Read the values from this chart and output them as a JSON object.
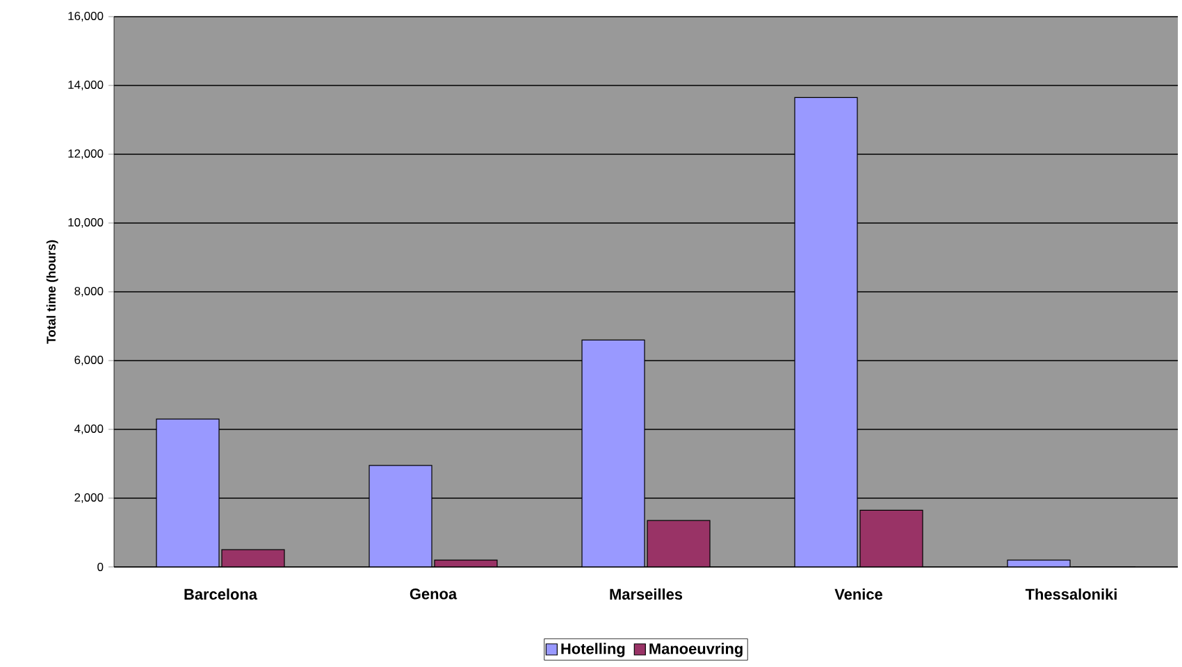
{
  "chart_data": {
    "type": "bar",
    "ylabel": "Total time (hours)",
    "categories": [
      "Barcelona",
      "Genoa",
      "Marseilles",
      "Venice",
      "Thessaloniki"
    ],
    "series": [
      {
        "name": "Hotelling",
        "color": "#9999ff",
        "values": [
          4300,
          2950,
          6600,
          13650,
          200
        ]
      },
      {
        "name": "Manoeuvring",
        "color": "#993366",
        "values": [
          500,
          200,
          1350,
          1650,
          0
        ]
      }
    ],
    "ylim": [
      0,
      16000
    ],
    "yticks": [
      {
        "value": 0,
        "label": "0"
      },
      {
        "value": 2000,
        "label": "2,000"
      },
      {
        "value": 4000,
        "label": "4,000"
      },
      {
        "value": 6000,
        "label": "6,000"
      },
      {
        "value": 8000,
        "label": "8,000"
      },
      {
        "value": 10000,
        "label": "10,000"
      },
      {
        "value": 12000,
        "label": "12,000"
      },
      {
        "value": 14000,
        "label": "14,000"
      },
      {
        "value": 16000,
        "label": "16,000"
      }
    ],
    "grid": "y",
    "legend": "bottom"
  }
}
